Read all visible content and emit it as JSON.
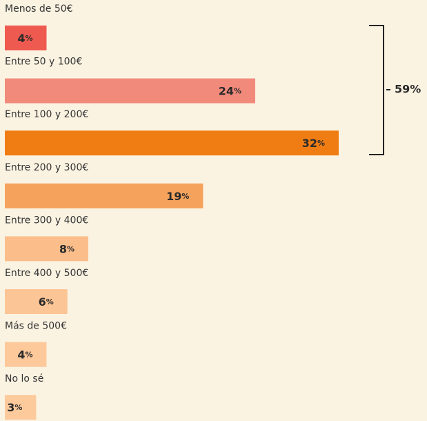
{
  "chart_data": {
    "type": "bar",
    "orientation": "horizontal",
    "categories": [
      "Menos de 50€",
      "Entre 50 y 100€",
      "Entre 100 y 200€",
      "Entre 200 y 300€",
      "Entre 300 y 400€",
      "Entre 400 y 500€",
      "Más de 500€",
      "No lo sé"
    ],
    "values": [
      4,
      24,
      32,
      19,
      8,
      6,
      4,
      3
    ],
    "value_labels": [
      "4%",
      "24%",
      "32%",
      "19%",
      "8%",
      "6%",
      "4%",
      "3%"
    ],
    "colors": [
      "#ef5a50",
      "#f28a7c",
      "#ef7d14",
      "#f5a35c",
      "#fbbe8b",
      "#fcc596",
      "#fdc89a",
      "#fdca9c"
    ],
    "annotation": {
      "text": "59%"
    }
  }
}
